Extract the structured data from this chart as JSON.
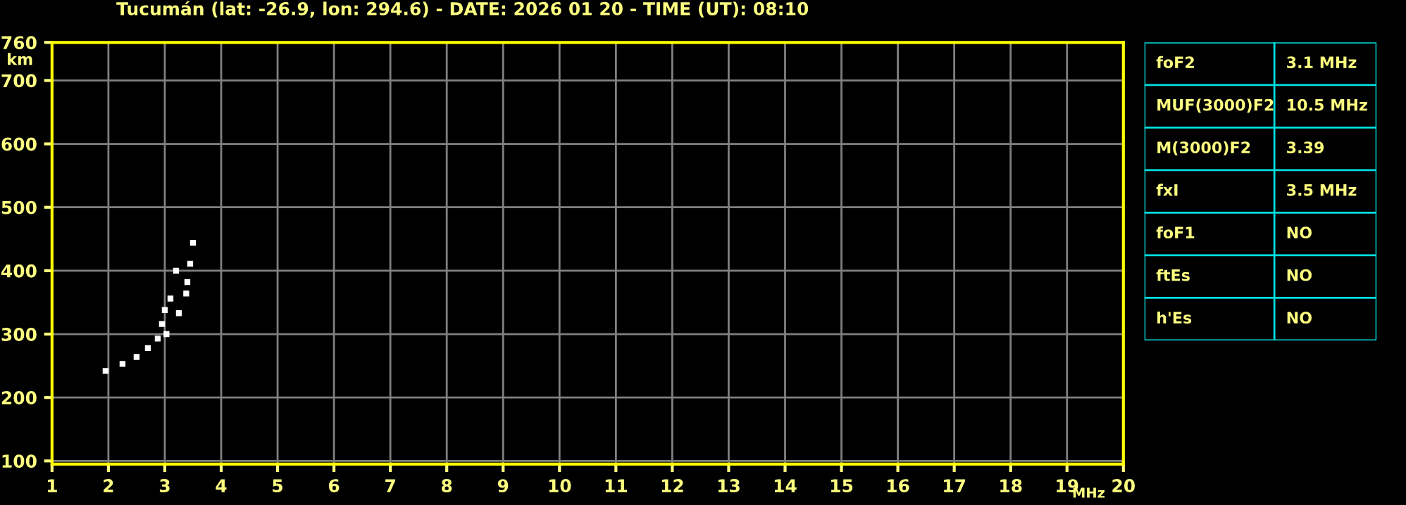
{
  "chart_data": [
    {
      "type": "scatter",
      "title": "Tucumán (lat: -26.9, lon: 294.6) - DATE: 2026 01 20 - TIME (UT): 08:10",
      "xlabel": "MHz",
      "ylabel": "km",
      "xlim": [
        1,
        20
      ],
      "xticks": [
        1,
        2,
        3,
        4,
        5,
        6,
        7,
        8,
        9,
        10,
        11,
        12,
        13,
        14,
        15,
        16,
        17,
        18,
        19,
        20
      ],
      "ylim": [
        95,
        760
      ],
      "yticks": [
        100,
        200,
        300,
        400,
        500,
        600,
        700,
        760
      ],
      "grid": true,
      "marker": "square",
      "series": [
        {
          "color": "#ffffff",
          "x": [
            1.95,
            2.25,
            2.5,
            2.7,
            2.875,
            2.95,
            3.0,
            3.1,
            3.2,
            3.03,
            3.25,
            3.38,
            3.4,
            3.45,
            3.5
          ],
          "values": [
            242,
            253,
            264,
            278,
            293,
            316,
            338,
            356,
            400,
            300,
            333,
            364,
            382,
            411,
            444
          ]
        }
      ]
    },
    {
      "type": "other",
      "annotations": [
        "foF2",
        "3.1 MHz",
        "MUF(3000)F2",
        "10.5 MHz",
        "M(3000)F2",
        "3.39",
        "fxI",
        "3.5 MHz",
        "foF1",
        "NO",
        "ftEs",
        "NO",
        "h'Es",
        "NO"
      ]
    }
  ]
}
